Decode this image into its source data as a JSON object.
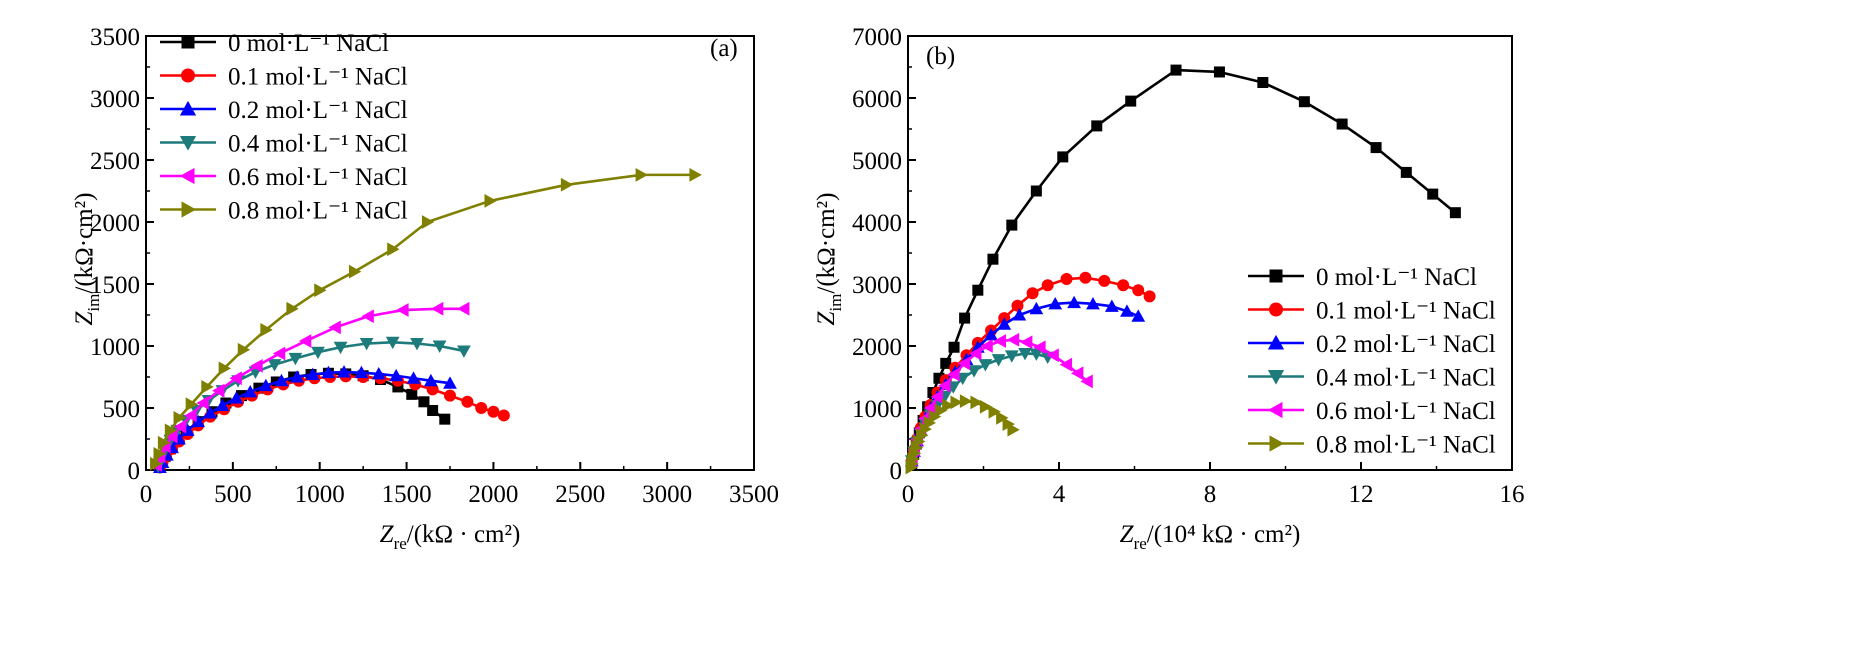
{
  "chart_data": [
    {
      "type": "line",
      "panel_label": "(a)",
      "xlabel": {
        "main": "Z",
        "sub": "re",
        "rest": "/(kΩ · cm²)"
      },
      "ylabel": {
        "main": "Z",
        "sub": "im",
        "rest": "/(kΩ·cm²)"
      },
      "xlim": [
        0,
        3500
      ],
      "ylim": [
        0,
        3500
      ],
      "xticks": [
        0,
        500,
        1000,
        1500,
        2000,
        2500,
        3000,
        3500
      ],
      "yticks": [
        0,
        500,
        1000,
        1500,
        2000,
        2500,
        3000,
        3500
      ],
      "legend_position": "top-left",
      "series": [
        {
          "name": "0 mol·L⁻¹ NaCl",
          "color": "#000000",
          "marker": "square",
          "x": [
            80,
            92,
            110,
            140,
            180,
            230,
            300,
            380,
            460,
            550,
            650,
            750,
            850,
            950,
            1050,
            1150,
            1250,
            1350,
            1450,
            1530,
            1600,
            1650,
            1720
          ],
          "y": [
            20,
            60,
            110,
            170,
            240,
            310,
            390,
            470,
            540,
            600,
            660,
            710,
            750,
            770,
            780,
            775,
            760,
            730,
            670,
            610,
            550,
            480,
            410
          ]
        },
        {
          "name": "0.1 mol·L⁻¹ NaCl",
          "color": "#ff0000",
          "marker": "circle",
          "x": [
            80,
            95,
            115,
            150,
            190,
            240,
            300,
            370,
            450,
            530,
            610,
            700,
            790,
            880,
            970,
            1060,
            1150,
            1250,
            1350,
            1450,
            1550,
            1650,
            1750,
            1850,
            1930,
            2000,
            2060
          ],
          "y": [
            20,
            60,
            110,
            170,
            230,
            290,
            360,
            430,
            490,
            550,
            600,
            650,
            690,
            720,
            740,
            750,
            755,
            750,
            740,
            720,
            690,
            650,
            600,
            550,
            500,
            470,
            440
          ]
        },
        {
          "name": "0.2 mol·L⁻¹ NaCl",
          "color": "#0000ff",
          "marker": "triangle-up",
          "x": [
            80,
            95,
            120,
            150,
            190,
            240,
            300,
            370,
            440,
            520,
            600,
            690,
            780,
            870,
            960,
            1050,
            1140,
            1240,
            1340,
            1440,
            1540,
            1640,
            1750
          ],
          "y": [
            20,
            60,
            120,
            180,
            250,
            320,
            390,
            460,
            520,
            580,
            630,
            680,
            720,
            750,
            770,
            785,
            790,
            785,
            775,
            760,
            740,
            720,
            700
          ]
        },
        {
          "name": "0.4 mol·L⁻¹ NaCl",
          "color": "#1e7b7b",
          "marker": "triangle-down",
          "x": [
            70,
            85,
            110,
            140,
            180,
            230,
            290,
            360,
            440,
            530,
            630,
            740,
            860,
            990,
            1120,
            1270,
            1420,
            1560,
            1690,
            1830
          ],
          "y": [
            30,
            90,
            160,
            240,
            320,
            400,
            480,
            560,
            640,
            720,
            790,
            850,
            900,
            950,
            990,
            1020,
            1030,
            1020,
            1000,
            960
          ]
        },
        {
          "name": "0.6 mol·L⁻¹ NaCl",
          "color": "#ff00ff",
          "marker": "triangle-left",
          "x": [
            60,
            80,
            110,
            150,
            200,
            260,
            330,
            420,
            520,
            640,
            770,
            920,
            1090,
            1280,
            1480,
            1680,
            1830
          ],
          "y": [
            40,
            110,
            190,
            270,
            350,
            440,
            540,
            640,
            740,
            840,
            940,
            1040,
            1150,
            1240,
            1290,
            1300,
            1300
          ]
        },
        {
          "name": "0.8 mol·L⁻¹ NaCl",
          "color": "#808000",
          "marker": "triangle-right",
          "x": [
            55,
            75,
            100,
            140,
            190,
            260,
            350,
            450,
            560,
            690,
            840,
            1000,
            1200,
            1420,
            1620,
            1980,
            2420,
            2850,
            3160
          ],
          "y": [
            50,
            130,
            220,
            320,
            420,
            530,
            670,
            820,
            970,
            1130,
            1300,
            1450,
            1600,
            1780,
            2000,
            2170,
            2300,
            2380,
            2380
          ]
        }
      ]
    },
    {
      "type": "line",
      "panel_label": "(b)",
      "xlabel": {
        "main": "Z",
        "sub": "re",
        "rest": "/(10⁴ kΩ · cm²)"
      },
      "ylabel": {
        "main": "Z",
        "sub": "im",
        "rest": "/(kΩ·cm²)"
      },
      "xlim": [
        0,
        16
      ],
      "ylim": [
        0,
        7000
      ],
      "xticks": [
        0,
        4,
        8,
        12,
        16
      ],
      "yticks": [
        0,
        1000,
        2000,
        3000,
        4000,
        5000,
        6000,
        7000
      ],
      "legend_position": "bottom-right",
      "series": [
        {
          "name": "0 mol·L⁻¹ NaCl",
          "color": "#000000",
          "marker": "square",
          "x": [
            0.1,
            0.15,
            0.22,
            0.3,
            0.4,
            0.52,
            0.66,
            0.82,
            1.0,
            1.22,
            1.5,
            1.85,
            2.25,
            2.75,
            3.4,
            4.1,
            5.0,
            5.9,
            7.1,
            8.25,
            9.4,
            10.5,
            11.5,
            12.4,
            13.2,
            13.9,
            14.5
          ],
          "y": [
            100,
            250,
            420,
            600,
            800,
            1020,
            1250,
            1480,
            1720,
            1980,
            2450,
            2900,
            3400,
            3950,
            4500,
            5050,
            5550,
            5950,
            6450,
            6420,
            6250,
            5940,
            5580,
            5200,
            4800,
            4450,
            4150
          ]
        },
        {
          "name": "0.1 mol·L⁻¹ NaCl",
          "color": "#ff0000",
          "marker": "circle",
          "x": [
            0.1,
            0.16,
            0.24,
            0.34,
            0.46,
            0.6,
            0.78,
            1.0,
            1.25,
            1.55,
            1.85,
            2.2,
            2.55,
            2.9,
            3.3,
            3.7,
            4.2,
            4.7,
            5.2,
            5.7,
            6.1,
            6.4
          ],
          "y": [
            150,
            320,
            500,
            680,
            860,
            1050,
            1250,
            1450,
            1650,
            1850,
            2050,
            2250,
            2450,
            2650,
            2850,
            2980,
            3080,
            3100,
            3050,
            2980,
            2900,
            2800
          ]
        },
        {
          "name": "0.2 mol·L⁻¹ NaCl",
          "color": "#0000ff",
          "marker": "triangle-up",
          "x": [
            0.1,
            0.16,
            0.24,
            0.34,
            0.46,
            0.6,
            0.78,
            1.0,
            1.25,
            1.55,
            1.85,
            2.2,
            2.55,
            2.95,
            3.4,
            3.9,
            4.4,
            4.9,
            5.4,
            5.8,
            6.1
          ],
          "y": [
            150,
            300,
            470,
            640,
            810,
            990,
            1180,
            1380,
            1580,
            1780,
            1980,
            2180,
            2350,
            2500,
            2600,
            2680,
            2700,
            2680,
            2640,
            2560,
            2480
          ]
        },
        {
          "name": "0.4 mol·L⁻¹ NaCl",
          "color": "#1e7b7b",
          "marker": "triangle-down",
          "x": [
            0.1,
            0.16,
            0.24,
            0.34,
            0.46,
            0.6,
            0.78,
            0.98,
            1.2,
            1.45,
            1.75,
            2.05,
            2.4,
            2.75,
            3.1,
            3.4,
            3.7
          ],
          "y": [
            150,
            290,
            440,
            590,
            740,
            890,
            1040,
            1190,
            1340,
            1480,
            1600,
            1700,
            1780,
            1840,
            1880,
            1870,
            1820
          ]
        },
        {
          "name": "0.6 mol·L⁻¹ NaCl",
          "color": "#ff00ff",
          "marker": "triangle-left",
          "x": [
            0.1,
            0.16,
            0.24,
            0.34,
            0.46,
            0.6,
            0.78,
            0.98,
            1.22,
            1.5,
            1.8,
            2.1,
            2.45,
            2.8,
            3.15,
            3.5,
            3.85,
            4.2,
            4.5,
            4.75
          ],
          "y": [
            160,
            320,
            490,
            660,
            830,
            1000,
            1180,
            1360,
            1540,
            1720,
            1880,
            2000,
            2080,
            2100,
            2060,
            1980,
            1850,
            1700,
            1560,
            1430
          ]
        },
        {
          "name": "0.8 mol·L⁻¹ NaCl",
          "color": "#808000",
          "marker": "triangle-right",
          "x": [
            0.08,
            0.1,
            0.13,
            0.17,
            0.22,
            0.28,
            0.36,
            0.45,
            0.56,
            0.7,
            0.86,
            1.05,
            1.27,
            1.52,
            1.8,
            2.05,
            2.28,
            2.48,
            2.65,
            2.78
          ],
          "y": [
            40,
            100,
            180,
            270,
            360,
            460,
            560,
            660,
            760,
            860,
            960,
            1040,
            1090,
            1110,
            1090,
            1020,
            940,
            840,
            740,
            650
          ]
        }
      ]
    }
  ]
}
